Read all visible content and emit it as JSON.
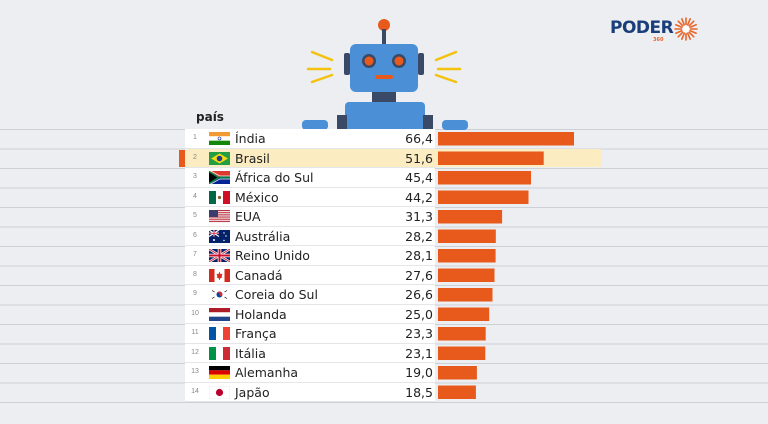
{
  "brand": {
    "name": "PODER",
    "sub": "360",
    "accent": "#e8652a",
    "text_color": "#1a3e7a"
  },
  "chart_data": {
    "type": "bar",
    "orientation": "horizontal",
    "column_header": "país",
    "categories": [
      "Índia",
      "Brasil",
      "África do Sul",
      "México",
      "EUA",
      "Austrália",
      "Reino Unido",
      "Canadá",
      "Coreia do Sul",
      "Holanda",
      "França",
      "Itália",
      "Alemanha",
      "Japão"
    ],
    "ranks": [
      "1",
      "2",
      "3",
      "4",
      "5",
      "6",
      "7",
      "8",
      "9",
      "10",
      "11",
      "12",
      "13",
      "14"
    ],
    "values": [
      66.4,
      51.6,
      45.4,
      44.2,
      31.3,
      28.2,
      28.1,
      27.6,
      26.6,
      25.0,
      23.3,
      23.1,
      19.0,
      18.5
    ],
    "value_labels": [
      "66,4",
      "51,6",
      "45,4",
      "44,2",
      "31,3",
      "28,2",
      "28,1",
      "27,6",
      "26,6",
      "25,0",
      "23,3",
      "23,1",
      "19,0",
      "18,5"
    ],
    "flags": [
      "india-flag",
      "brazil-flag",
      "south-africa-flag",
      "mexico-flag",
      "usa-flag",
      "australia-flag",
      "uk-flag",
      "canada-flag",
      "south-korea-flag",
      "netherlands-flag",
      "france-flag",
      "italy-flag",
      "germany-flag",
      "japan-flag"
    ],
    "highlight_index": 1,
    "bar_color": "#e8591c",
    "highlight_color": "#fbecc2",
    "xlim": [
      0,
      70
    ]
  }
}
